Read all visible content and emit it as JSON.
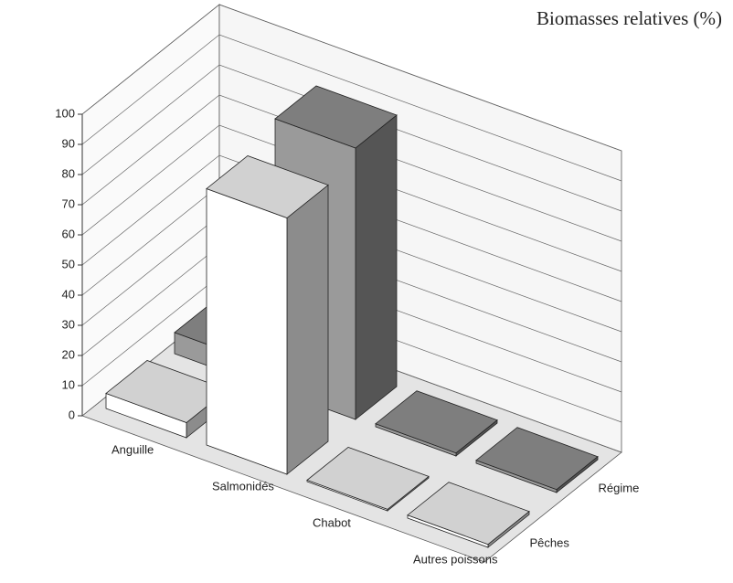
{
  "chart_data": {
    "type": "bar",
    "title": "Biomasses relatives (%)",
    "categories": [
      "Anguille",
      "Salmonidés",
      "Chabot",
      "Autres poissons"
    ],
    "series": [
      {
        "name": "Pêches",
        "color": "#ffffff",
        "values": [
          5,
          85,
          0.5,
          1
        ]
      },
      {
        "name": "Régime",
        "color": "#9a9a9a",
        "values": [
          7,
          90,
          1,
          1
        ]
      }
    ],
    "ylim": [
      0,
      100
    ],
    "yticks": [
      0,
      10,
      20,
      30,
      40,
      50,
      60,
      70,
      80,
      90,
      100
    ],
    "grid": true
  }
}
